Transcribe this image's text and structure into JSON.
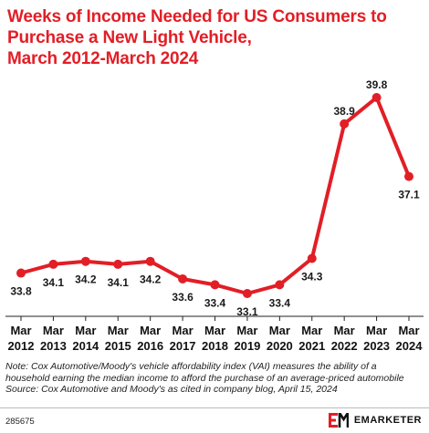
{
  "title_lines": [
    "Weeks of Income Needed for US Consumers to",
    "Purchase a New Light Vehicle,",
    "March 2012-March 2024"
  ],
  "chart_data": {
    "type": "line",
    "categories": [
      [
        "Mar",
        "2012"
      ],
      [
        "Mar",
        "2013"
      ],
      [
        "Mar",
        "2014"
      ],
      [
        "Mar",
        "2015"
      ],
      [
        "Mar",
        "2016"
      ],
      [
        "Mar",
        "2017"
      ],
      [
        "Mar",
        "2018"
      ],
      [
        "Mar",
        "2019"
      ],
      [
        "Mar",
        "2020"
      ],
      [
        "Mar",
        "2021"
      ],
      [
        "Mar",
        "2022"
      ],
      [
        "Mar",
        "2023"
      ],
      [
        "Mar",
        "2024"
      ]
    ],
    "values": [
      33.8,
      34.1,
      34.2,
      34.1,
      34.2,
      33.6,
      33.4,
      33.1,
      33.4,
      34.3,
      38.9,
      39.8,
      37.1
    ],
    "labels": [
      "33.8",
      "34.1",
      "34.2",
      "34.1",
      "34.2",
      "33.6",
      "33.4",
      "33.1",
      "33.4",
      "34.3",
      "38.9",
      "39.8",
      "37.1"
    ],
    "label_position": [
      "below",
      "below",
      "below",
      "below",
      "below",
      "below",
      "below",
      "below",
      "below",
      "below",
      "above",
      "above",
      "below"
    ],
    "line_color": "#e21e26",
    "grid": false
  },
  "footnote": {
    "note": "Note: Cox Automotive/Moody's vehicle affordability index (VAI) measures the ability of a household earning the median income to afford the purchase of an average-priced automobile",
    "source": "Source: Cox Automotive and Moody's as cited in company blog, April 15, 2024"
  },
  "chart_id": "285675",
  "brand": {
    "mark": "EM",
    "name": "EMARKETER",
    "mark_color": "#e21e26"
  }
}
